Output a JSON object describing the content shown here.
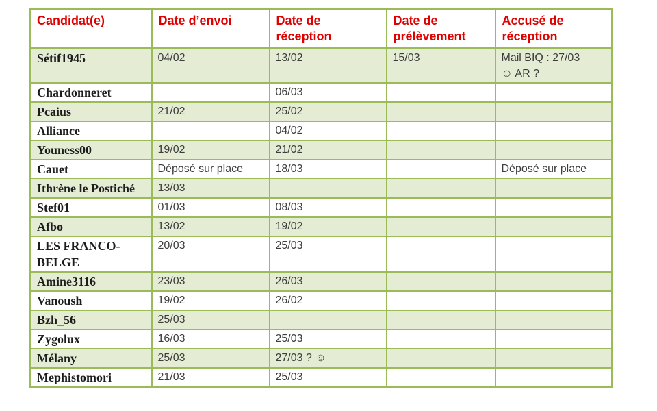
{
  "table": {
    "columns": [
      {
        "label": "Candidat(e)"
      },
      {
        "label": "Date d’envoi"
      },
      {
        "label": "Date de réception"
      },
      {
        "label": "Date de prélèvement"
      },
      {
        "label": "Accusé de réception"
      }
    ],
    "rows": [
      {
        "name": "Sétif1945",
        "envoi": "04/02",
        "reception": "13/02",
        "prelevement": "15/03",
        "accuse": "Mail BIQ : 27/03\n☺  AR ?"
      },
      {
        "name": "Chardonneret",
        "envoi": "",
        "reception": "06/03",
        "prelevement": "",
        "accuse": ""
      },
      {
        "name": "Pcaius",
        "envoi": "21/02",
        "reception": "25/02",
        "prelevement": "",
        "accuse": ""
      },
      {
        "name": "Alliance",
        "envoi": "",
        "reception": "04/02",
        "prelevement": "",
        "accuse": ""
      },
      {
        "name": "Youness00",
        "envoi": "19/02",
        "reception": "21/02",
        "prelevement": "",
        "accuse": ""
      },
      {
        "name": "Cauet",
        "envoi": "Déposé sur place",
        "reception": "18/03",
        "prelevement": "",
        "accuse": "Déposé sur place"
      },
      {
        "name": "Ithrène le Postiché",
        "envoi": "13/03",
        "reception": "",
        "prelevement": "",
        "accuse": ""
      },
      {
        "name": "Stef01",
        "envoi": "01/03",
        "reception": "08/03",
        "prelevement": "",
        "accuse": ""
      },
      {
        "name": "Afbo",
        "envoi": "13/02",
        "reception": "19/02",
        "prelevement": "",
        "accuse": ""
      },
      {
        "name": "LES FRANCO-BELGE",
        "envoi": "20/03",
        "reception": "25/03",
        "prelevement": "",
        "accuse": ""
      },
      {
        "name": "Amine3116",
        "envoi": "23/03",
        "reception": "26/03",
        "prelevement": "",
        "accuse": ""
      },
      {
        "name": "Vanoush",
        "envoi": "19/02",
        "reception": "26/02",
        "prelevement": "",
        "accuse": ""
      },
      {
        "name": "Bzh_56",
        "envoi": "25/03",
        "reception": "",
        "prelevement": "",
        "accuse": ""
      },
      {
        "name": "Zygolux",
        "envoi": "16/03",
        "reception": "25/03",
        "prelevement": "",
        "accuse": ""
      },
      {
        "name": "Mélany",
        "envoi": "25/03",
        "reception": "27/03 ? ☺",
        "prelevement": "",
        "accuse": ""
      },
      {
        "name": "Mephistomori",
        "envoi": "21/03",
        "reception": "25/03",
        "prelevement": "",
        "accuse": ""
      }
    ],
    "icons": [
      {
        "name": "smiley-face-icon",
        "glyph": "☺"
      }
    ],
    "colors": {
      "border_olive": "#9bbb59",
      "band_green": "#e5ecd4",
      "header_red": "#e00000"
    }
  }
}
